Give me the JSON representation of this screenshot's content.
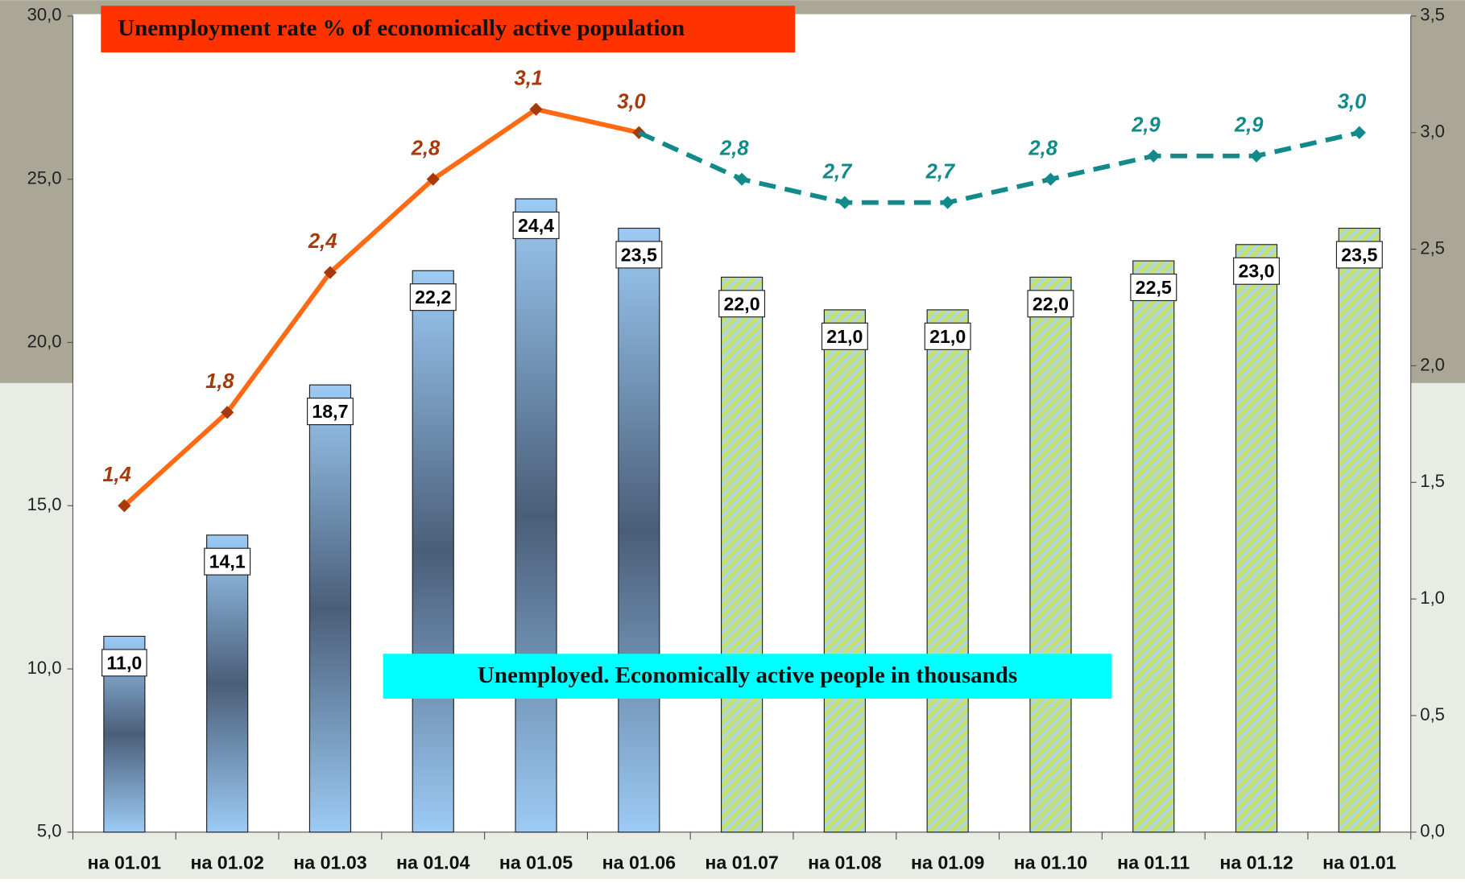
{
  "chart_data": {
    "type": "bar_line",
    "categories": [
      "на 01.01",
      "на 01.02",
      "на 01.03",
      "на 01.04",
      "на 01.05",
      "на 01.06",
      "на 01.07",
      "на 01.08",
      "на 01.09",
      "на 01.10",
      "на 01.11",
      "на 01.12",
      "на 01.01"
    ],
    "series": [
      {
        "name": "Unemployed. Economically active people in thousands",
        "type": "bar",
        "fill": "gradient",
        "color": "#8fc2ef",
        "values": [
          11.0,
          14.1,
          18.7,
          22.2,
          24.4,
          23.5,
          null,
          null,
          null,
          null,
          null,
          null,
          null
        ],
        "value_labels": [
          "11,0",
          "14,1",
          "18,7",
          "22,2",
          "24,4",
          "23,5",
          null,
          null,
          null,
          null,
          null,
          null,
          null
        ]
      },
      {
        "type": "bar",
        "fill": "hatched",
        "color": "#c8e070",
        "values": [
          null,
          null,
          null,
          null,
          null,
          null,
          22.0,
          21.0,
          21.0,
          22.0,
          22.5,
          23.0,
          23.5
        ],
        "value_labels": [
          null,
          null,
          null,
          null,
          null,
          null,
          "22,0",
          "21,0",
          "21,0",
          "22,0",
          "22,5",
          "23,0",
          "23,5"
        ]
      },
      {
        "name": "Unemployment rate % of economically active population",
        "type": "line",
        "axis": "y2",
        "color": "#ff6a13",
        "marker_color": "#a63a0c",
        "line_style": "solid",
        "values": [
          1.4,
          1.8,
          2.4,
          2.8,
          3.1,
          3.0,
          null,
          null,
          null,
          null,
          null,
          null,
          null
        ],
        "value_labels": [
          "1,4",
          "1,8",
          "2,4",
          "2,8",
          "3,1",
          "3,0",
          null,
          null,
          null,
          null,
          null,
          null,
          null
        ]
      },
      {
        "type": "line",
        "axis": "y2",
        "color": "#138a8a",
        "marker_color": "#138a8a",
        "line_style": "dashed",
        "values": [
          null,
          null,
          null,
          null,
          null,
          3.0,
          2.8,
          2.7,
          2.7,
          2.8,
          2.9,
          2.9,
          3.0
        ],
        "value_labels": [
          null,
          null,
          null,
          null,
          null,
          null,
          "2,8",
          "2,7",
          "2,7",
          "2,8",
          "2,9",
          "2,9",
          "3,0"
        ]
      }
    ],
    "ylim": [
      5,
      30
    ],
    "yticks": [
      {
        "value": 5,
        "label": "5,0"
      },
      {
        "value": 10,
        "label": "10,0"
      },
      {
        "value": 15,
        "label": "15,0"
      },
      {
        "value": 20,
        "label": "20,0"
      },
      {
        "value": 25,
        "label": "25,0"
      },
      {
        "value": 30,
        "label": "30,0"
      }
    ],
    "y2lim": [
      0,
      3.5
    ],
    "y2ticks": [
      {
        "value": 0,
        "label": "0,0"
      },
      {
        "value": 0.5,
        "label": "0,5"
      },
      {
        "value": 1,
        "label": "1,0"
      },
      {
        "value": 1.5,
        "label": "1,5"
      },
      {
        "value": 2,
        "label": "2,0"
      },
      {
        "value": 2.5,
        "label": "2,5"
      },
      {
        "value": 3,
        "label": "3,0"
      },
      {
        "value": 3.5,
        "label": "3,5"
      }
    ]
  }
}
